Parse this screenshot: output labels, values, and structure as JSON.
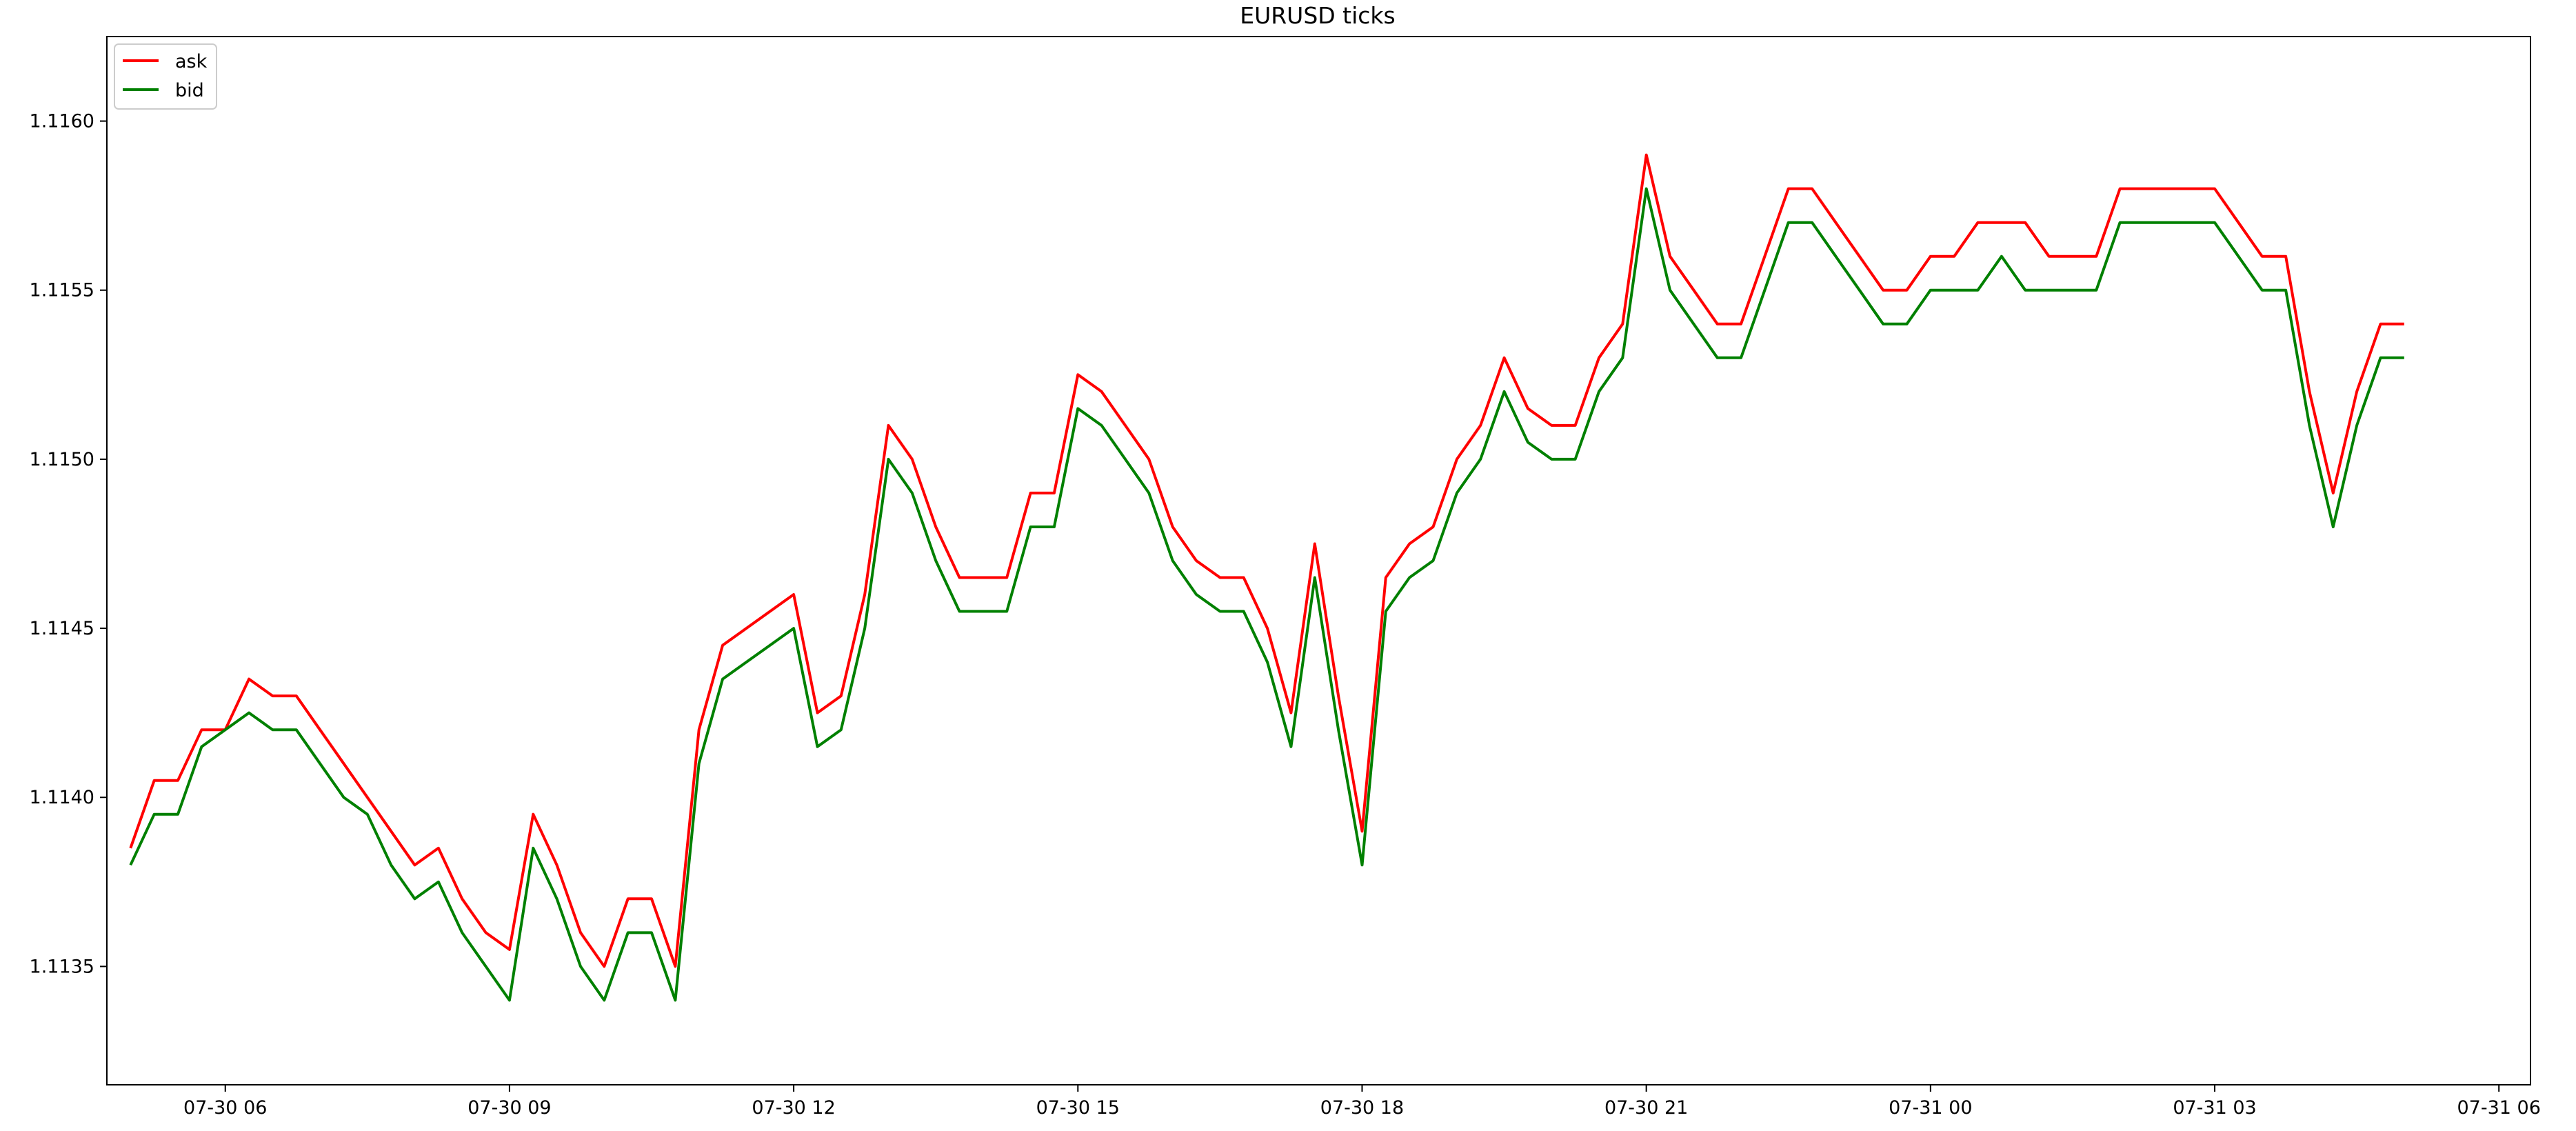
{
  "chart_data": {
    "type": "line",
    "title": "EURUSD ticks",
    "xlabel": "",
    "ylabel": "",
    "x_range": [
      "07-30 04:45",
      "07-31 06:20"
    ],
    "ylim": [
      1.11315,
      1.11625
    ],
    "grid": false,
    "legend_position": "top-left",
    "x_tick_labels": [
      "07-30 06",
      "07-30 09",
      "07-30 12",
      "07-30 15",
      "07-30 18",
      "07-30 21",
      "07-31 00",
      "07-31 03",
      "07-31 06"
    ],
    "y_tick_labels": [
      "1.1135",
      "1.1140",
      "1.1145",
      "1.1150",
      "1.1155",
      "1.1160"
    ],
    "series": [
      {
        "name": "ask",
        "color": "#ff0000",
        "points": [
          [
            "07-30 05:00",
            1.11385
          ],
          [
            "07-30 05:15",
            1.11405
          ],
          [
            "07-30 05:30",
            1.11405
          ],
          [
            "07-30 05:45",
            1.1142
          ],
          [
            "07-30 06:00",
            1.1142
          ],
          [
            "07-30 06:15",
            1.11435
          ],
          [
            "07-30 06:30",
            1.1143
          ],
          [
            "07-30 06:45",
            1.1143
          ],
          [
            "07-30 07:00",
            1.1142
          ],
          [
            "07-30 07:15",
            1.1141
          ],
          [
            "07-30 07:30",
            1.114
          ],
          [
            "07-30 07:45",
            1.1139
          ],
          [
            "07-30 08:00",
            1.1138
          ],
          [
            "07-30 08:15",
            1.11385
          ],
          [
            "07-30 08:30",
            1.1137
          ],
          [
            "07-30 08:45",
            1.1136
          ],
          [
            "07-30 09:00",
            1.11355
          ],
          [
            "07-30 09:15",
            1.11395
          ],
          [
            "07-30 09:30",
            1.1138
          ],
          [
            "07-30 09:45",
            1.1136
          ],
          [
            "07-30 10:00",
            1.1135
          ],
          [
            "07-30 10:15",
            1.1137
          ],
          [
            "07-30 10:30",
            1.1137
          ],
          [
            "07-30 10:45",
            1.1135
          ],
          [
            "07-30 11:00",
            1.1142
          ],
          [
            "07-30 11:15",
            1.11445
          ],
          [
            "07-30 11:30",
            1.1145
          ],
          [
            "07-30 11:45",
            1.11455
          ],
          [
            "07-30 12:00",
            1.1146
          ],
          [
            "07-30 12:15",
            1.11425
          ],
          [
            "07-30 12:30",
            1.1143
          ],
          [
            "07-30 12:45",
            1.1146
          ],
          [
            "07-30 13:00",
            1.1151
          ],
          [
            "07-30 13:15",
            1.115
          ],
          [
            "07-30 13:30",
            1.1148
          ],
          [
            "07-30 13:45",
            1.11465
          ],
          [
            "07-30 14:00",
            1.11465
          ],
          [
            "07-30 14:15",
            1.11465
          ],
          [
            "07-30 14:30",
            1.1149
          ],
          [
            "07-30 14:45",
            1.1149
          ],
          [
            "07-30 15:00",
            1.11525
          ],
          [
            "07-30 15:15",
            1.1152
          ],
          [
            "07-30 15:30",
            1.1151
          ],
          [
            "07-30 15:45",
            1.115
          ],
          [
            "07-30 16:00",
            1.1148
          ],
          [
            "07-30 16:15",
            1.1147
          ],
          [
            "07-30 16:30",
            1.11465
          ],
          [
            "07-30 16:45",
            1.11465
          ],
          [
            "07-30 17:00",
            1.1145
          ],
          [
            "07-30 17:15",
            1.11425
          ],
          [
            "07-30 17:30",
            1.11475
          ],
          [
            "07-30 17:45",
            1.1143
          ],
          [
            "07-30 18:00",
            1.1139
          ],
          [
            "07-30 18:15",
            1.11465
          ],
          [
            "07-30 18:30",
            1.11475
          ],
          [
            "07-30 18:45",
            1.1148
          ],
          [
            "07-30 19:00",
            1.115
          ],
          [
            "07-30 19:15",
            1.1151
          ],
          [
            "07-30 19:30",
            1.1153
          ],
          [
            "07-30 19:45",
            1.11515
          ],
          [
            "07-30 20:00",
            1.1151
          ],
          [
            "07-30 20:15",
            1.1151
          ],
          [
            "07-30 20:30",
            1.1153
          ],
          [
            "07-30 20:45",
            1.1154
          ],
          [
            "07-30 21:00",
            1.1159
          ],
          [
            "07-30 21:15",
            1.1156
          ],
          [
            "07-30 21:30",
            1.1155
          ],
          [
            "07-30 21:45",
            1.1154
          ],
          [
            "07-30 22:00",
            1.1154
          ],
          [
            "07-30 22:15",
            1.1156
          ],
          [
            "07-30 22:30",
            1.1158
          ],
          [
            "07-30 22:45",
            1.1158
          ],
          [
            "07-30 23:00",
            1.1157
          ],
          [
            "07-30 23:15",
            1.1156
          ],
          [
            "07-30 23:30",
            1.1155
          ],
          [
            "07-30 23:45",
            1.1155
          ],
          [
            "07-31 00:00",
            1.1156
          ],
          [
            "07-31 00:15",
            1.1156
          ],
          [
            "07-31 00:30",
            1.1157
          ],
          [
            "07-31 00:45",
            1.1157
          ],
          [
            "07-31 01:00",
            1.1157
          ],
          [
            "07-31 01:15",
            1.1156
          ],
          [
            "07-31 01:30",
            1.1156
          ],
          [
            "07-31 01:45",
            1.1156
          ],
          [
            "07-31 02:00",
            1.1158
          ],
          [
            "07-31 02:15",
            1.1158
          ],
          [
            "07-31 02:30",
            1.1158
          ],
          [
            "07-31 02:45",
            1.1158
          ],
          [
            "07-31 03:00",
            1.1158
          ],
          [
            "07-31 03:15",
            1.1157
          ],
          [
            "07-31 03:30",
            1.1156
          ],
          [
            "07-31 03:45",
            1.1156
          ],
          [
            "07-31 04:00",
            1.1152
          ],
          [
            "07-31 04:15",
            1.1149
          ],
          [
            "07-31 04:30",
            1.1152
          ],
          [
            "07-31 04:45",
            1.1154
          ],
          [
            "07-31 05:00",
            1.1154
          ]
        ]
      },
      {
        "name": "bid",
        "color": "#008000",
        "points": [
          [
            "07-30 05:00",
            1.1138
          ],
          [
            "07-30 05:15",
            1.11395
          ],
          [
            "07-30 05:30",
            1.11395
          ],
          [
            "07-30 05:45",
            1.11415
          ],
          [
            "07-30 06:00",
            1.1142
          ],
          [
            "07-30 06:15",
            1.11425
          ],
          [
            "07-30 06:30",
            1.1142
          ],
          [
            "07-30 06:45",
            1.1142
          ],
          [
            "07-30 07:00",
            1.1141
          ],
          [
            "07-30 07:15",
            1.114
          ],
          [
            "07-30 07:30",
            1.11395
          ],
          [
            "07-30 07:45",
            1.1138
          ],
          [
            "07-30 08:00",
            1.1137
          ],
          [
            "07-30 08:15",
            1.11375
          ],
          [
            "07-30 08:30",
            1.1136
          ],
          [
            "07-30 08:45",
            1.1135
          ],
          [
            "07-30 09:00",
            1.1134
          ],
          [
            "07-30 09:15",
            1.11385
          ],
          [
            "07-30 09:30",
            1.1137
          ],
          [
            "07-30 09:45",
            1.1135
          ],
          [
            "07-30 10:00",
            1.1134
          ],
          [
            "07-30 10:15",
            1.1136
          ],
          [
            "07-30 10:30",
            1.1136
          ],
          [
            "07-30 10:45",
            1.1134
          ],
          [
            "07-30 11:00",
            1.1141
          ],
          [
            "07-30 11:15",
            1.11435
          ],
          [
            "07-30 11:30",
            1.1144
          ],
          [
            "07-30 11:45",
            1.11445
          ],
          [
            "07-30 12:00",
            1.1145
          ],
          [
            "07-30 12:15",
            1.11415
          ],
          [
            "07-30 12:30",
            1.1142
          ],
          [
            "07-30 12:45",
            1.1145
          ],
          [
            "07-30 13:00",
            1.115
          ],
          [
            "07-30 13:15",
            1.1149
          ],
          [
            "07-30 13:30",
            1.1147
          ],
          [
            "07-30 13:45",
            1.11455
          ],
          [
            "07-30 14:00",
            1.11455
          ],
          [
            "07-30 14:15",
            1.11455
          ],
          [
            "07-30 14:30",
            1.1148
          ],
          [
            "07-30 14:45",
            1.1148
          ],
          [
            "07-30 15:00",
            1.11515
          ],
          [
            "07-30 15:15",
            1.1151
          ],
          [
            "07-30 15:30",
            1.115
          ],
          [
            "07-30 15:45",
            1.1149
          ],
          [
            "07-30 16:00",
            1.1147
          ],
          [
            "07-30 16:15",
            1.1146
          ],
          [
            "07-30 16:30",
            1.11455
          ],
          [
            "07-30 16:45",
            1.11455
          ],
          [
            "07-30 17:00",
            1.1144
          ],
          [
            "07-30 17:15",
            1.11415
          ],
          [
            "07-30 17:30",
            1.11465
          ],
          [
            "07-30 17:45",
            1.1142
          ],
          [
            "07-30 18:00",
            1.1138
          ],
          [
            "07-30 18:15",
            1.11455
          ],
          [
            "07-30 18:30",
            1.11465
          ],
          [
            "07-30 18:45",
            1.1147
          ],
          [
            "07-30 19:00",
            1.1149
          ],
          [
            "07-30 19:15",
            1.115
          ],
          [
            "07-30 19:30",
            1.1152
          ],
          [
            "07-30 19:45",
            1.11505
          ],
          [
            "07-30 20:00",
            1.115
          ],
          [
            "07-30 20:15",
            1.115
          ],
          [
            "07-30 20:30",
            1.1152
          ],
          [
            "07-30 20:45",
            1.1153
          ],
          [
            "07-30 21:00",
            1.1158
          ],
          [
            "07-30 21:15",
            1.1155
          ],
          [
            "07-30 21:30",
            1.1154
          ],
          [
            "07-30 21:45",
            1.1153
          ],
          [
            "07-30 22:00",
            1.1153
          ],
          [
            "07-30 22:15",
            1.1155
          ],
          [
            "07-30 22:30",
            1.1157
          ],
          [
            "07-30 22:45",
            1.1157
          ],
          [
            "07-30 23:00",
            1.1156
          ],
          [
            "07-30 23:15",
            1.1155
          ],
          [
            "07-30 23:30",
            1.1154
          ],
          [
            "07-30 23:45",
            1.1154
          ],
          [
            "07-31 00:00",
            1.1155
          ],
          [
            "07-31 00:15",
            1.1155
          ],
          [
            "07-31 00:30",
            1.1155
          ],
          [
            "07-31 00:45",
            1.1156
          ],
          [
            "07-31 01:00",
            1.1155
          ],
          [
            "07-31 01:15",
            1.1155
          ],
          [
            "07-31 01:30",
            1.1155
          ],
          [
            "07-31 01:45",
            1.1155
          ],
          [
            "07-31 02:00",
            1.1157
          ],
          [
            "07-31 02:15",
            1.1157
          ],
          [
            "07-31 02:30",
            1.1157
          ],
          [
            "07-31 02:45",
            1.1157
          ],
          [
            "07-31 03:00",
            1.1157
          ],
          [
            "07-31 03:15",
            1.1156
          ],
          [
            "07-31 03:30",
            1.1155
          ],
          [
            "07-31 03:45",
            1.1155
          ],
          [
            "07-31 04:00",
            1.1151
          ],
          [
            "07-31 04:15",
            1.1148
          ],
          [
            "07-31 04:30",
            1.1151
          ],
          [
            "07-31 04:45",
            1.1153
          ],
          [
            "07-31 05:00",
            1.1153
          ]
        ]
      }
    ]
  }
}
